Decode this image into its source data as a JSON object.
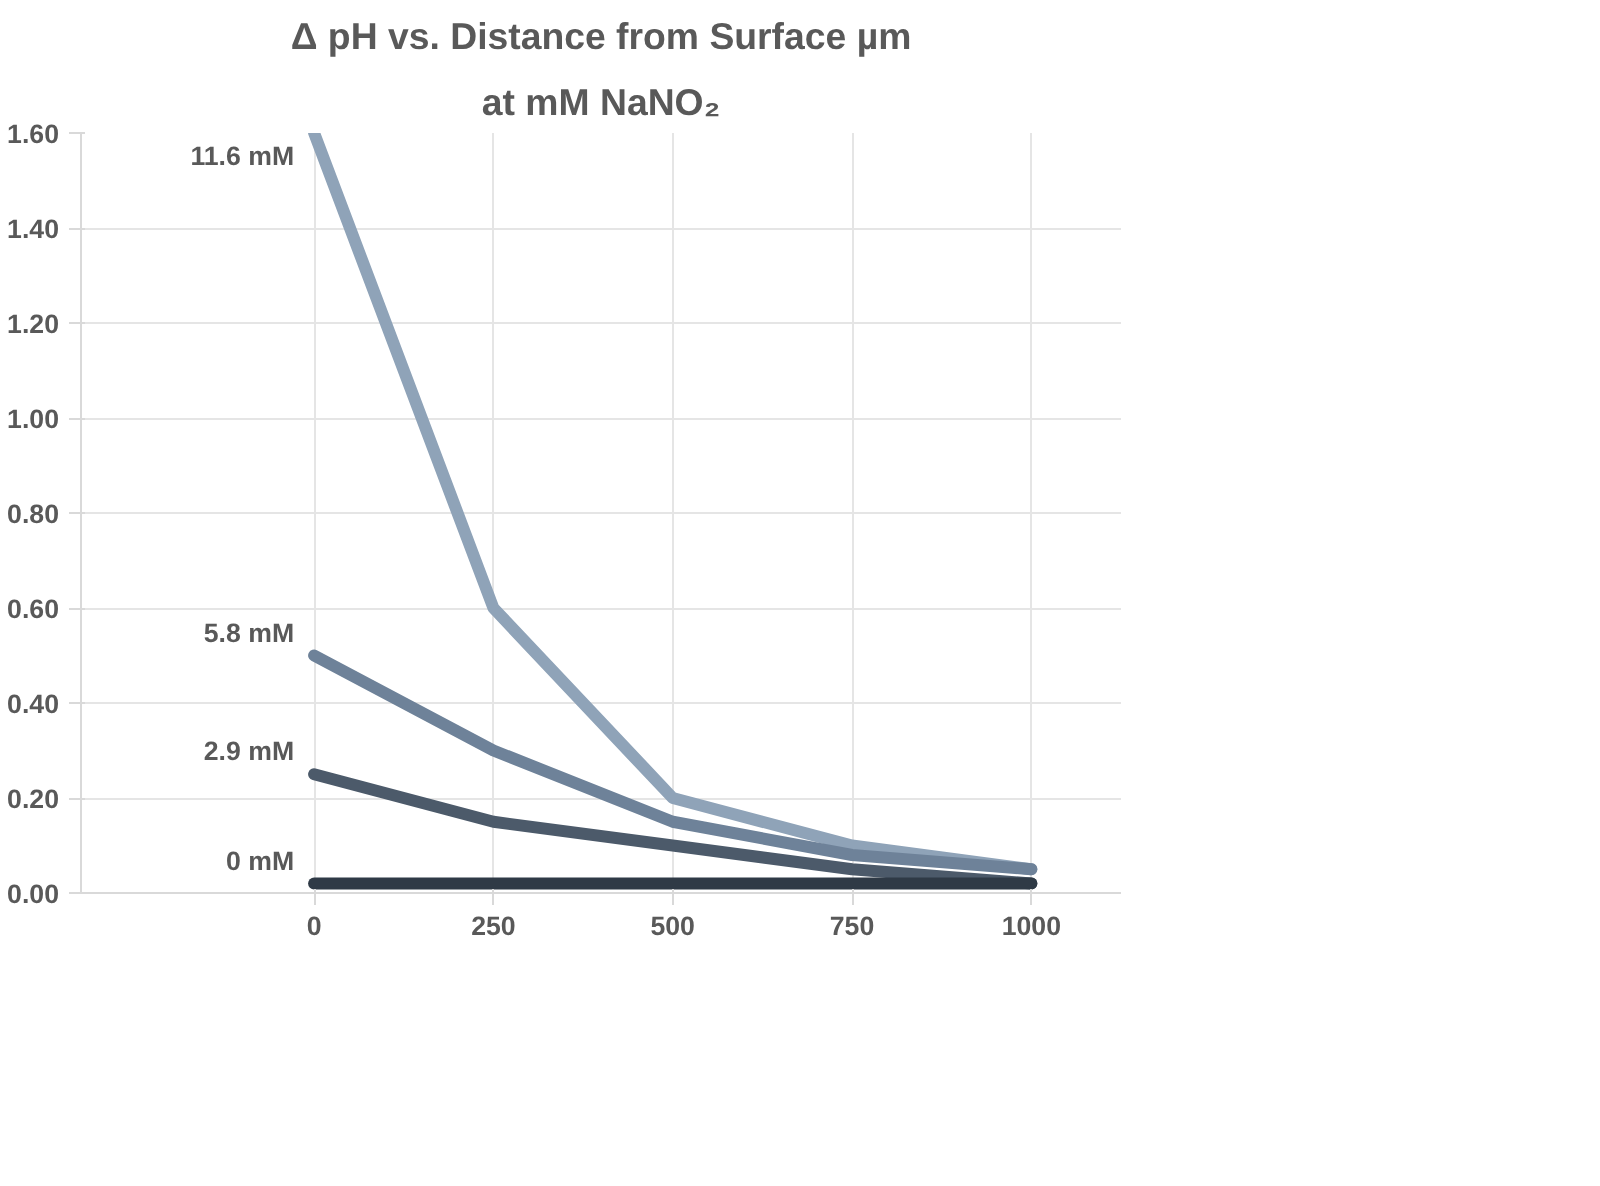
{
  "chart_data": {
    "type": "line",
    "title": "Δ pH vs. Distance from Surface µm",
    "subtitle": "at mM NaNO₂",
    "categories": [
      "0",
      "250",
      "500",
      "750",
      "1000"
    ],
    "series": [
      {
        "name": "11.6 mM",
        "color": "#8fa3b8",
        "values": [
          1.6,
          0.6,
          0.2,
          0.1,
          0.05
        ]
      },
      {
        "name": "5.8 mM",
        "color": "#6e8299",
        "values": [
          0.5,
          0.3,
          0.15,
          0.08,
          0.05
        ]
      },
      {
        "name": "2.9 mM",
        "color": "#4c5a6a",
        "values": [
          0.25,
          0.15,
          0.1,
          0.05,
          0.02
        ]
      },
      {
        "name": "0 mM",
        "color": "#2f3a46",
        "values": [
          0.02,
          0.02,
          0.02,
          0.02,
          0.02
        ]
      }
    ],
    "ylim": [
      0,
      1.6
    ],
    "yticks": [
      {
        "value": 0,
        "label": "0.00"
      },
      {
        "value": 0.2,
        "label": "0.20"
      },
      {
        "value": 0.4,
        "label": "0.40"
      },
      {
        "value": 0.6,
        "label": "0.60"
      },
      {
        "value": 0.8,
        "label": "0.80"
      },
      {
        "value": 1.0,
        "label": "1.00"
      },
      {
        "value": 1.2,
        "label": "1.20"
      },
      {
        "value": 1.4,
        "label": "1.40"
      },
      {
        "value": 1.6,
        "label": "1.60"
      }
    ],
    "grid": true,
    "marker": "none",
    "line_style": "solid"
  }
}
